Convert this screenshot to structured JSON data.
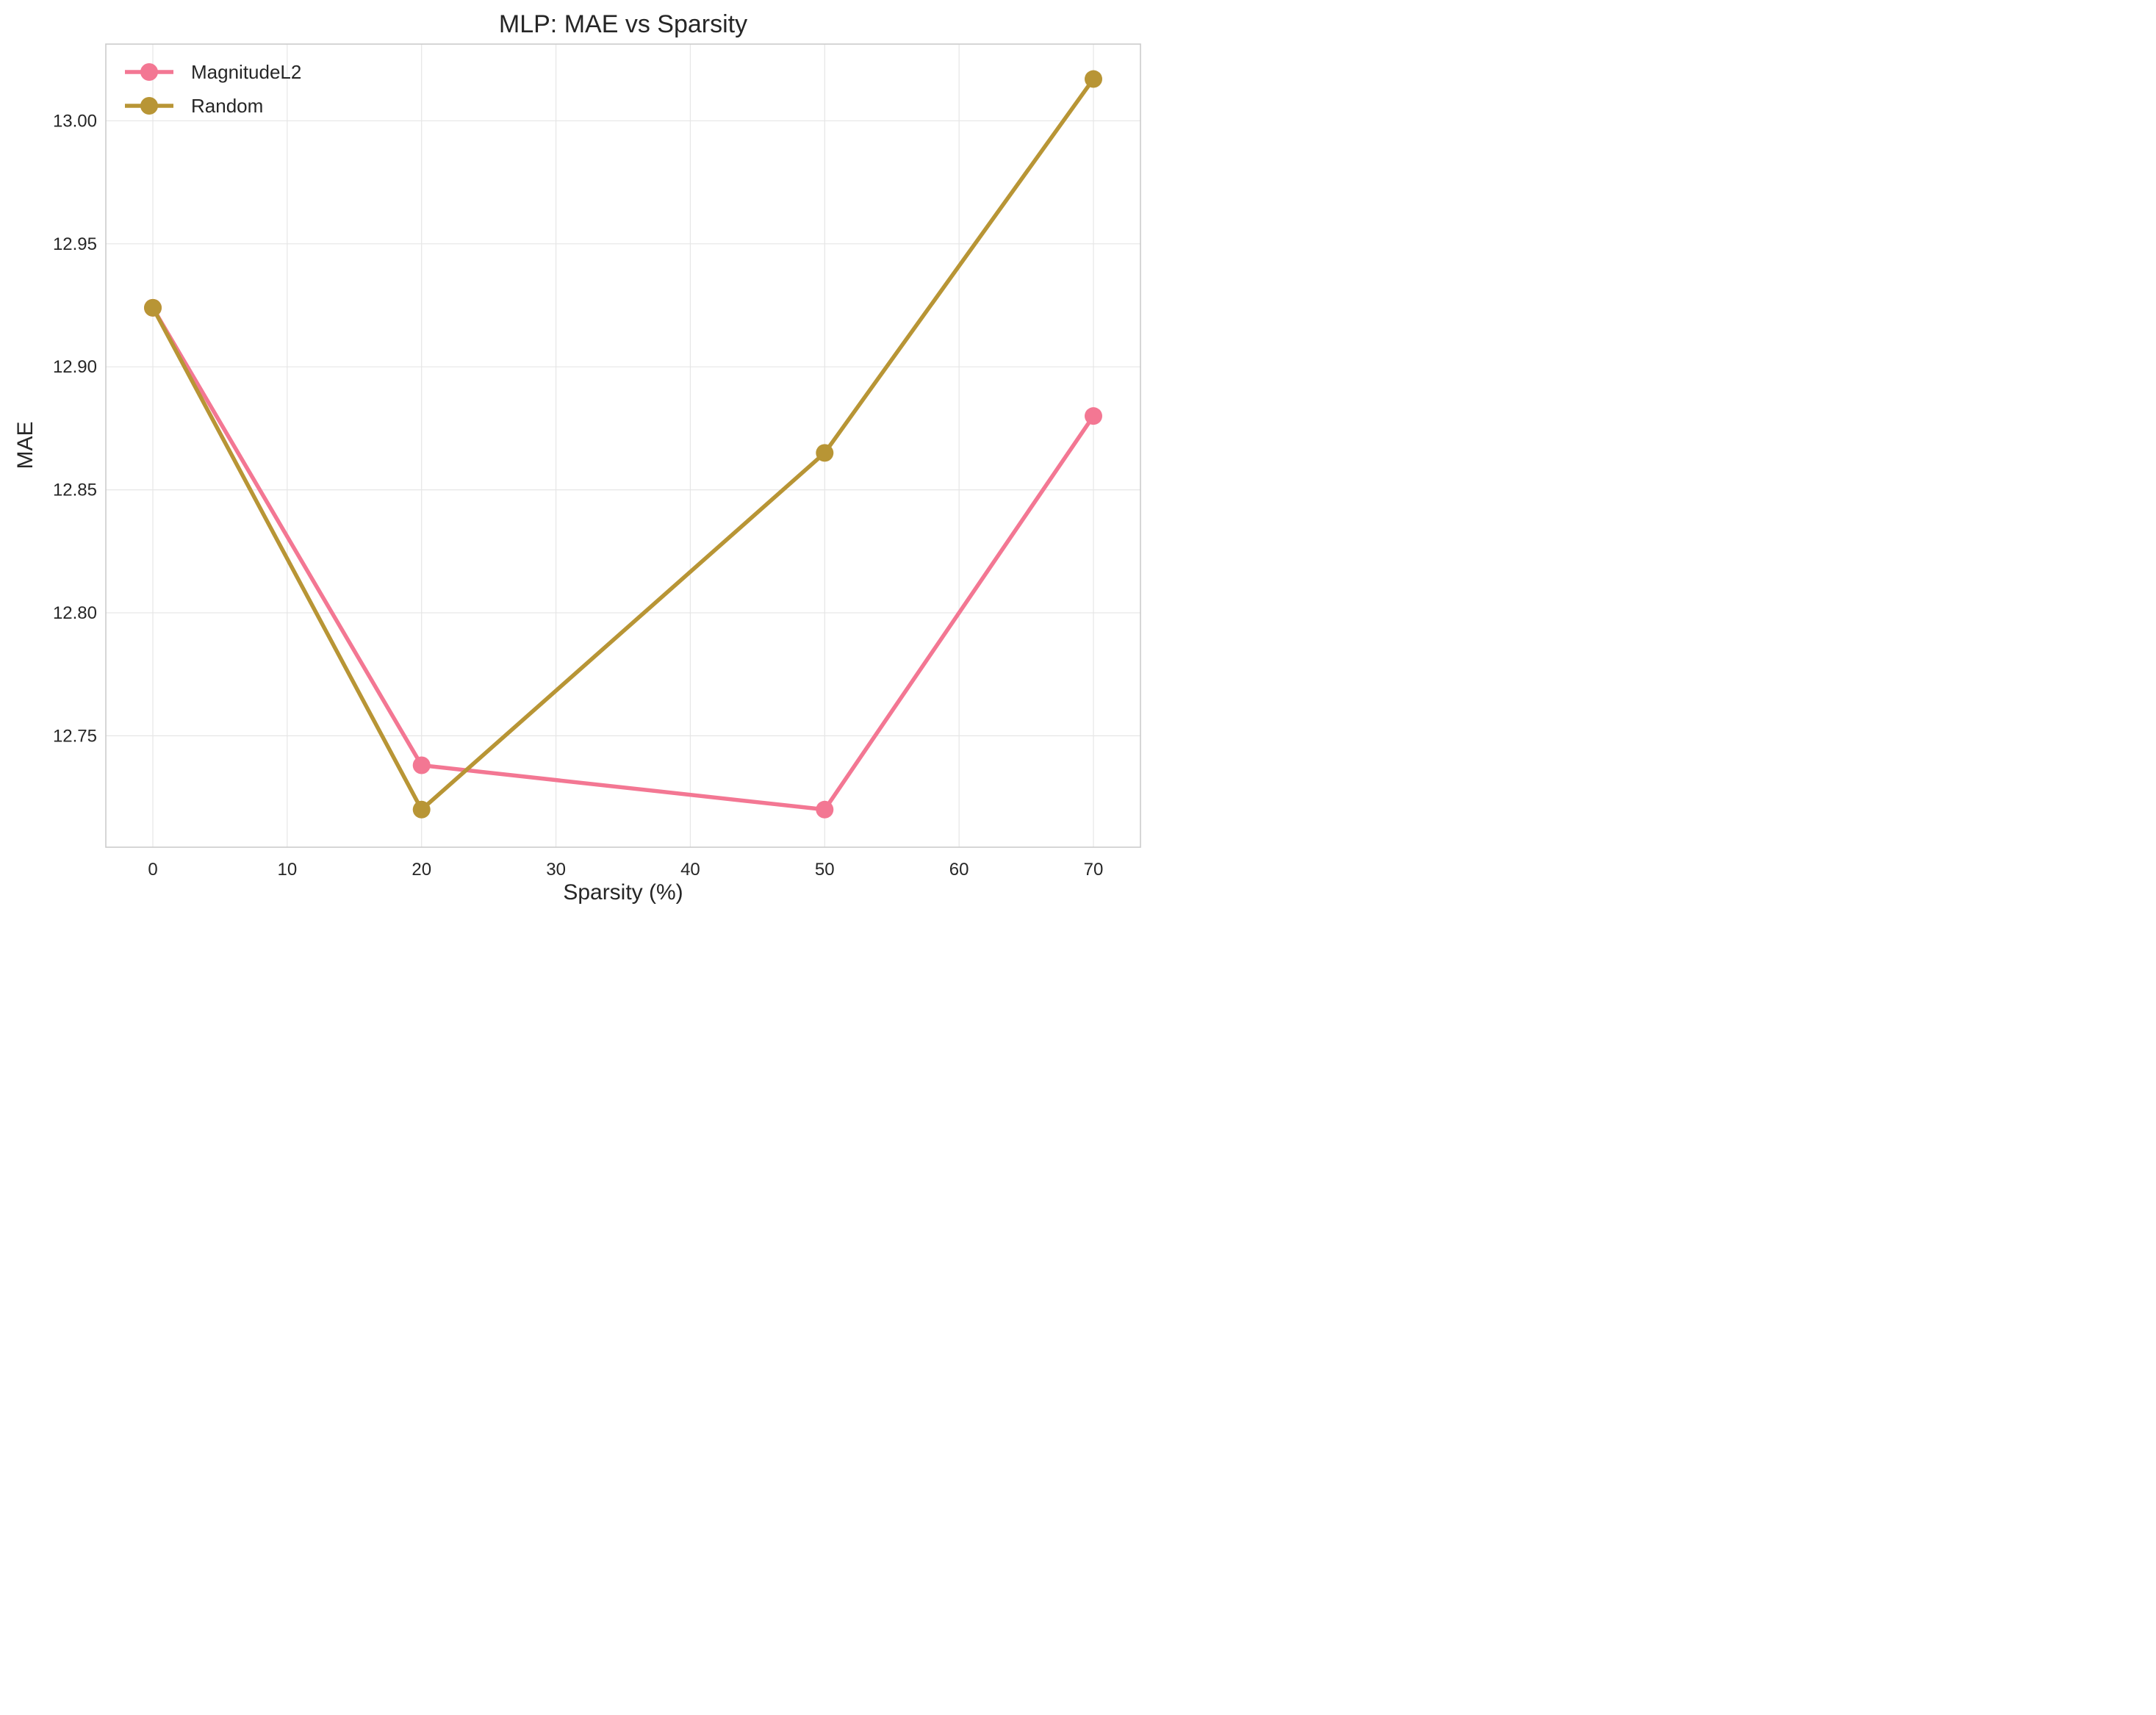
{
  "chart_data": {
    "type": "line",
    "title": "MLP: MAE vs Sparsity",
    "xlabel": "Sparsity (%)",
    "ylabel": "MAE",
    "xlim": [
      -3.5,
      73.5
    ],
    "ylim": [
      12.7047,
      13.0312
    ],
    "xticks": [
      0,
      10,
      20,
      30,
      40,
      50,
      60,
      70
    ],
    "yticks": [
      12.75,
      12.8,
      12.85,
      12.9,
      12.95,
      13.0
    ],
    "ytick_labels": [
      "12.75",
      "12.80",
      "12.85",
      "12.90",
      "12.95",
      "13.00"
    ],
    "grid": true,
    "legend_position": "top-left",
    "series": [
      {
        "name": "MagnitudeL2",
        "color": "#f37793",
        "x": [
          0,
          20,
          50,
          70
        ],
        "y": [
          12.924,
          12.738,
          12.72,
          12.88
        ]
      },
      {
        "name": "Random",
        "color": "#b89535",
        "x": [
          0,
          20,
          50,
          70
        ],
        "y": [
          12.924,
          12.72,
          12.865,
          13.017
        ]
      }
    ]
  }
}
